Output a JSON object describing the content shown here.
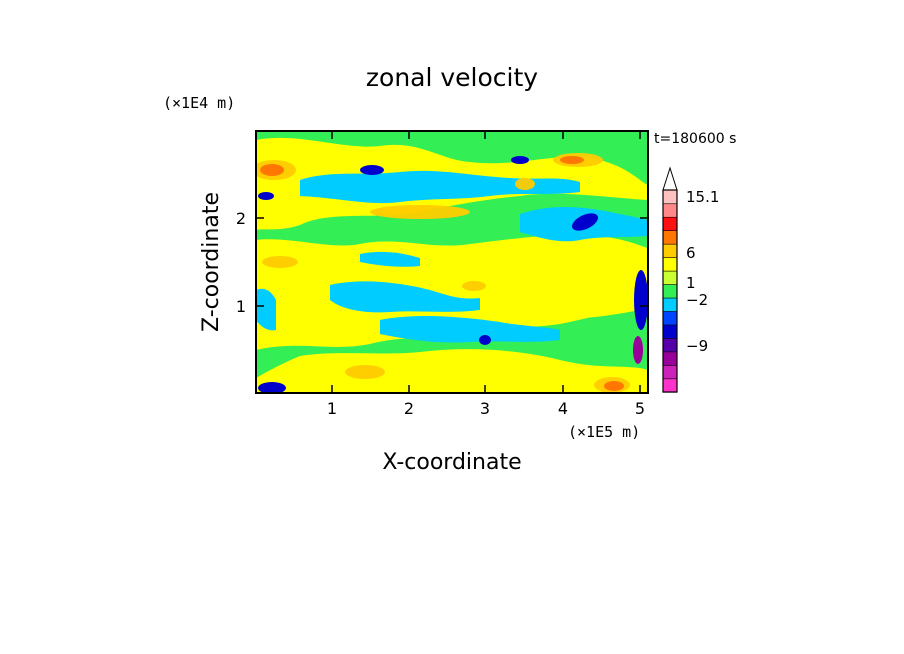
{
  "chart_data": {
    "type": "heatmap",
    "title": "zonal velocity",
    "xlabel": "X-coordinate",
    "ylabel": "Z-coordinate",
    "x_unit": "(×1E5 m)",
    "y_unit": "(×1E4 m)",
    "time_label": "t=180600 s",
    "xlim": [
      0,
      5.12
    ],
    "ylim": [
      0,
      2.96
    ],
    "x_ticks": [
      1,
      2,
      3,
      4,
      5
    ],
    "y_ticks": [
      1,
      2
    ],
    "colorbar": {
      "labels": [
        "15.1",
        "6",
        "1",
        "−2",
        "−9"
      ],
      "levels": [
        -12,
        -9,
        -6,
        -4,
        -2,
        -1,
        0,
        1,
        2,
        4,
        6,
        9,
        12,
        15.1
      ],
      "colors": [
        "#ff33cc",
        "#cc22bb",
        "#990099",
        "#5500aa",
        "#0000cc",
        "#0044ff",
        "#00ccff",
        "#33ee55",
        "#ccff33",
        "#ffff00",
        "#ffcc00",
        "#ff7700",
        "#ff1111",
        "#ff8888",
        "#ffc0c0"
      ],
      "extend": "max"
    },
    "regions": [
      {
        "value": 0.5,
        "level": "green",
        "x": [
          0,
          5.12
        ],
        "z": [
          0,
          2.96
        ]
      },
      {
        "value": 1.5,
        "level": "yellow",
        "x": [
          0.0,
          1.5
        ],
        "z": [
          2.55,
          2.9
        ]
      },
      {
        "value": 1.5,
        "level": "yellow",
        "x": [
          2.3,
          5.0
        ],
        "z": [
          2.35,
          2.7
        ]
      },
      {
        "value": 1.5,
        "level": "yellow",
        "x": [
          0.5,
          3.0
        ],
        "z": [
          1.9,
          2.3
        ]
      },
      {
        "value": 1.5,
        "level": "yellow",
        "x": [
          3.3,
          5.0
        ],
        "z": [
          1.1,
          1.7
        ]
      },
      {
        "value": 1.5,
        "level": "yellow",
        "x": [
          0.5,
          3.0
        ],
        "z": [
          0.7,
          1.2
        ]
      },
      {
        "value": 1.5,
        "level": "yellow",
        "x": [
          1.5,
          4.6
        ],
        "z": [
          0.05,
          0.6
        ]
      },
      {
        "value": 1.5,
        "level": "yellow",
        "x": [
          0.0,
          0.7
        ],
        "z": [
          0.4,
          1.0
        ]
      },
      {
        "value": -0.5,
        "level": "cyan",
        "x": [
          0.5,
          2.0
        ],
        "z": [
          1.1,
          1.4
        ]
      },
      {
        "value": -0.5,
        "level": "cyan",
        "x": [
          3.2,
          5.0
        ],
        "z": [
          1.95,
          2.25
        ]
      },
      {
        "value": -0.5,
        "level": "cyan",
        "x": [
          1.3,
          3.3
        ],
        "z": [
          2.45,
          2.65
        ]
      },
      {
        "value": -0.5,
        "level": "cyan",
        "x": [
          1.4,
          3.3
        ],
        "z": [
          0.6,
          0.85
        ]
      },
      {
        "value": -0.5,
        "level": "cyan",
        "x": [
          1.3,
          2.2
        ],
        "z": [
          1.45,
          1.6
        ]
      },
      {
        "value": 3,
        "level": "orange-yellow",
        "x": [
          0.0,
          0.5
        ],
        "z": [
          2.4,
          2.6
        ]
      },
      {
        "value": 3,
        "level": "orange-yellow",
        "x": [
          1.5,
          3.3
        ],
        "z": [
          2.0,
          2.15
        ]
      },
      {
        "value": 3,
        "level": "orange-yellow",
        "x": [
          4.0,
          4.5
        ],
        "z": [
          2.6,
          2.7
        ]
      },
      {
        "value": 3,
        "level": "orange-yellow",
        "x": [
          4.5,
          5.0
        ],
        "z": [
          0.0,
          0.2
        ]
      },
      {
        "value": -3,
        "level": "blue",
        "x": [
          1.3,
          1.6
        ],
        "z": [
          2.4,
          2.55
        ]
      },
      {
        "value": -3,
        "level": "blue",
        "x": [
          3.3,
          3.6
        ],
        "z": [
          2.6,
          2.7
        ]
      },
      {
        "value": -3,
        "level": "blue",
        "x": [
          4.0,
          4.6
        ],
        "z": [
          1.85,
          2.05
        ]
      },
      {
        "value": -3,
        "level": "blue",
        "x": [
          0.1,
          0.4
        ],
        "z": [
          0.0,
          0.08
        ]
      },
      {
        "value": -3,
        "level": "blue",
        "x": [
          4.95,
          5.12
        ],
        "z": [
          0.5,
          1.5
        ]
      }
    ]
  }
}
